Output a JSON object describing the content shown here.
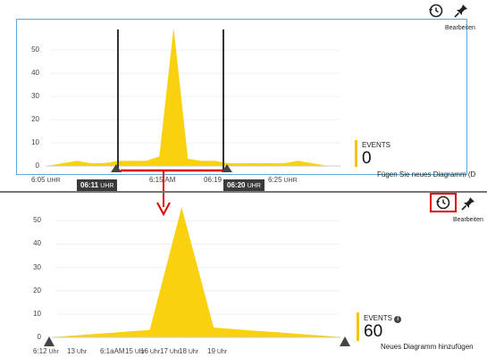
{
  "toolbar_top": {
    "history_icon": "history-icon",
    "pin_icon": "pin-icon",
    "edit_label": "Bearbeiten"
  },
  "toolbar_bottom": {
    "history_icon": "history-icon",
    "pin_icon": "pin-icon",
    "edit_label": "Bearbeiten"
  },
  "top_chart": {
    "metric_title": "EVENTS",
    "metric_value": "0",
    "add_chart_hint": "Fügen Sie neues Diagramm (D",
    "brush": {
      "start_label": "06:11",
      "start_unit": "UHR",
      "end_label": "06:20",
      "end_unit": "UHR"
    }
  },
  "bottom_chart": {
    "metric_title": "EVENTS",
    "metric_value": "60",
    "add_chart_hint": "Neues Diagramm hinzufügen"
  },
  "colors": {
    "series": "#f9d10f",
    "highlight": "#e00000",
    "border": "#5fa8d3"
  },
  "chart_data": [
    {
      "type": "area",
      "ylim": [
        0,
        57
      ],
      "y_ticks": [
        "50",
        "40",
        "30",
        "20",
        "10",
        "0"
      ],
      "x_ticks": [
        {
          "t": "6:05",
          "unit": "UHR"
        },
        {
          "t": "6:15 AM",
          "unit": ""
        },
        {
          "t": "06:19",
          "unit": ""
        },
        {
          "t": "6:25",
          "unit": "UHR"
        }
      ],
      "series": [
        {
          "x": [
            "06:05",
            "06:06",
            "06:07",
            "06:08",
            "06:09",
            "06:10",
            "06:11",
            "06:12",
            "06:13",
            "06:14",
            "06:15",
            "06:16",
            "06:17",
            "06:18",
            "06:19",
            "06:20",
            "06:21",
            "06:22",
            "06:23",
            "06:24",
            "06:25",
            "06:26"
          ],
          "values": [
            0,
            1,
            2,
            1,
            1,
            2,
            2,
            2,
            4,
            58,
            3,
            2,
            2,
            1,
            1,
            1,
            1,
            1,
            2,
            1,
            0,
            0
          ]
        }
      ]
    },
    {
      "type": "area",
      "ylim": [
        0,
        57
      ],
      "y_ticks": [
        "50",
        "40",
        "30",
        "20",
        "10",
        "0"
      ],
      "x_ticks": [
        {
          "t": "6:12",
          "unit": "Uhr"
        },
        {
          "t": "13",
          "unit": "Uhr"
        },
        {
          "t": "6:1aAM",
          "unit": ""
        },
        {
          "t": "15",
          "unit": "Uhr"
        },
        {
          "t": "16",
          "unit": "Uhr"
        },
        {
          "t": "17",
          "unit": "Uhr"
        },
        {
          "t": "18",
          "unit": "Uhr"
        },
        {
          "t": "19",
          "unit": "Uhr"
        }
      ],
      "series": [
        {
          "x": [
            "06:11",
            "06:12",
            "06:13",
            "06:14",
            "06:15",
            "06:16",
            "06:17",
            "06:18",
            "06:19",
            "06:20"
          ],
          "values": [
            0,
            1,
            2,
            3,
            55,
            4,
            3,
            2,
            1,
            0
          ]
        }
      ]
    }
  ]
}
